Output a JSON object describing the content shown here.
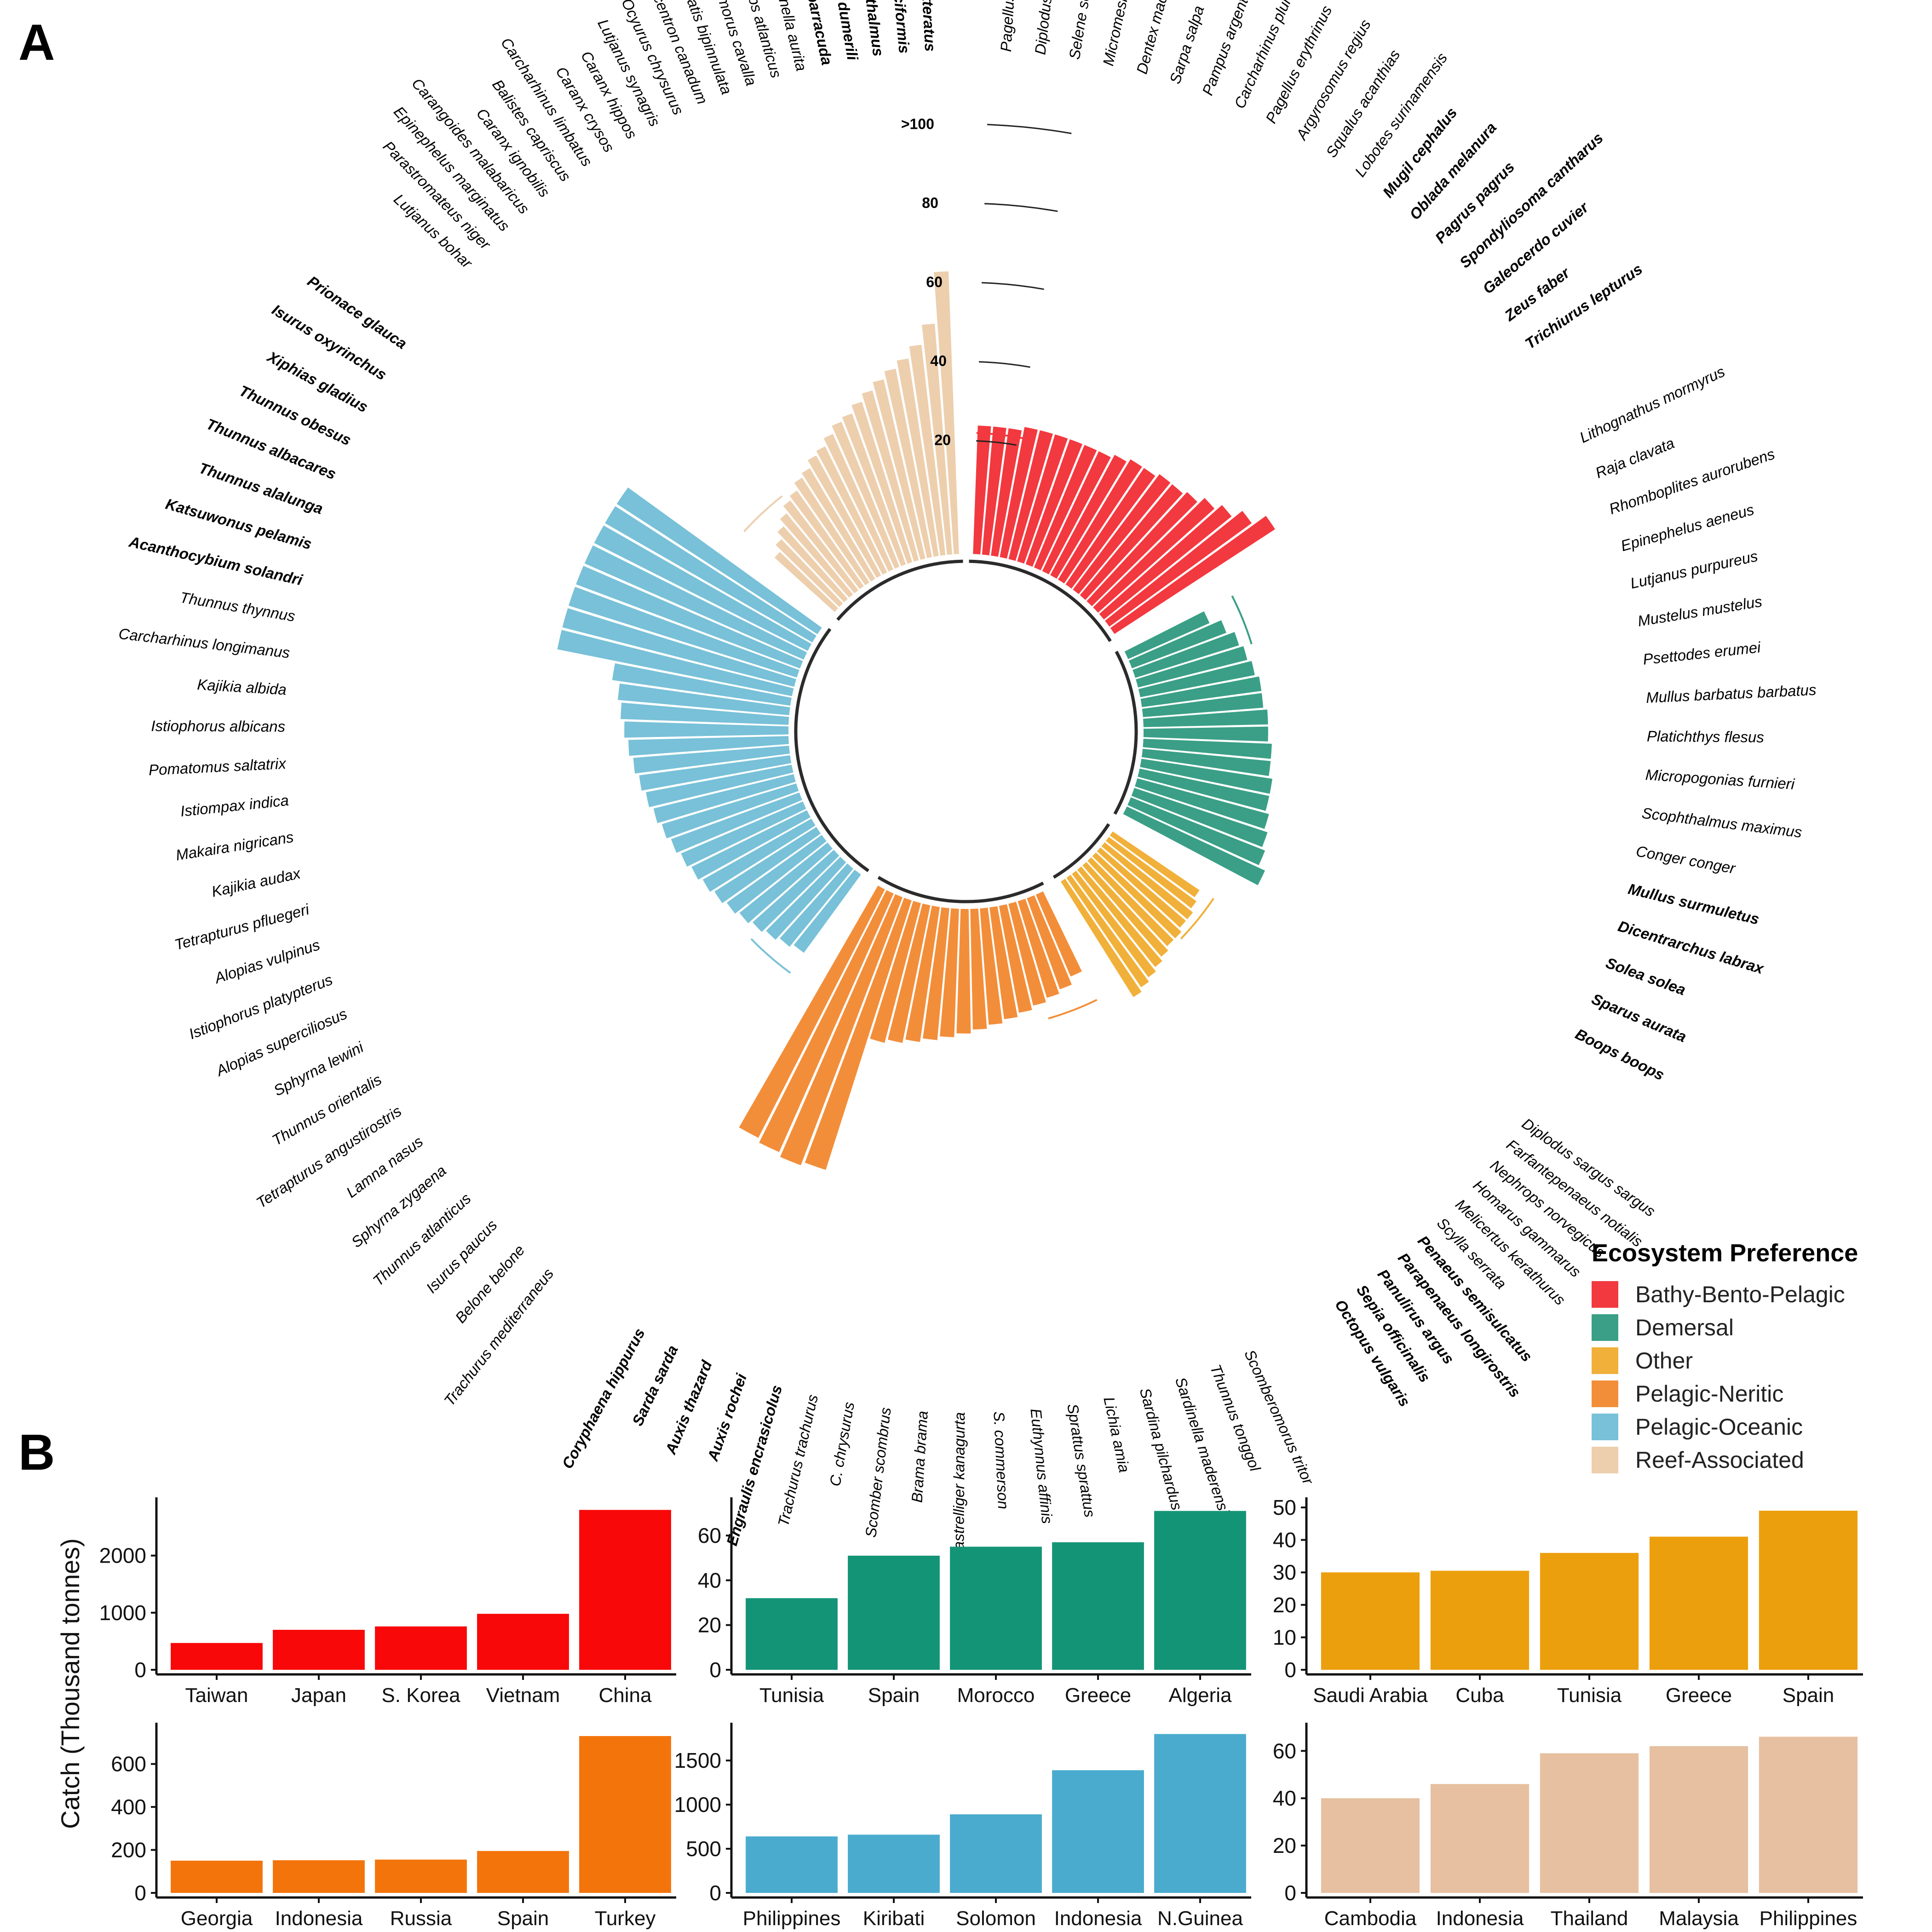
{
  "panels": {
    "a": "A",
    "b": "B"
  },
  "ecosystems": [
    {
      "name": "Bathy-Bento-Pelagic",
      "color": "#f2393f"
    },
    {
      "name": "Demersal",
      "color": "#3a9f86"
    },
    {
      "name": "Other",
      "color": "#f0b03a"
    },
    {
      "name": "Pelagic-Neritic",
      "color": "#f28e3a"
    },
    {
      "name": "Pelagic-Oceanic",
      "color": "#78c1d8"
    },
    {
      "name": "Reef-Associated",
      "color": "#edcfae"
    }
  ],
  "legend": {
    "title": "Ecosystem Preference"
  },
  "chart_data": [
    {
      "type": "bar",
      "coord": "polar",
      "scale_labels": [
        "20",
        "40",
        "60",
        "80",
        ">100"
      ],
      "groups": [
        {
          "ecosystem": "Bathy-Bento-Pelagic",
          "species": [
            {
              "name": "Pagellus acarne",
              "value": 24,
              "bold": false
            },
            {
              "name": "Diplodus annularis",
              "value": 24,
              "bold": false
            },
            {
              "name": "Selene setapinnis",
              "value": 24,
              "bold": false
            },
            {
              "name": "Micromesistius poutassou",
              "value": 25,
              "bold": false
            },
            {
              "name": "Dentex macrophthalmus",
              "value": 25,
              "bold": false
            },
            {
              "name": "Sarpa salpa",
              "value": 25,
              "bold": false
            },
            {
              "name": "Pampus argenteus",
              "value": 25,
              "bold": false
            },
            {
              "name": "Carcharhinus plumbeus",
              "value": 25,
              "bold": false
            },
            {
              "name": "Pagellus erythrinus",
              "value": 25,
              "bold": false
            },
            {
              "name": "Argyrosomus regius",
              "value": 26,
              "bold": false
            },
            {
              "name": "Squalus acanthias",
              "value": 27,
              "bold": false
            },
            {
              "name": "Lobotes surinamensis",
              "value": 27,
              "bold": false
            },
            {
              "name": "Mugil cephalus",
              "value": 28,
              "bold": true
            },
            {
              "name": "Oblada melanura",
              "value": 28,
              "bold": true
            },
            {
              "name": "Pagrus pagrus",
              "value": 29,
              "bold": true
            },
            {
              "name": "Spondyliosoma cantharus",
              "value": 31,
              "bold": true
            },
            {
              "name": "Galeocerdo cuvier",
              "value": 33,
              "bold": true
            },
            {
              "name": "Zeus faber",
              "value": 36,
              "bold": true
            },
            {
              "name": "Trichiurus lepturus",
              "value": 40,
              "bold": true
            }
          ]
        },
        {
          "ecosystem": "Demersal",
          "species": [
            {
              "name": "Lithognathus mormyrus",
              "value": 14,
              "bold": false
            },
            {
              "name": "Raja clavata",
              "value": 17,
              "bold": false
            },
            {
              "name": "Rhomboplites aurorubens",
              "value": 19,
              "bold": false
            },
            {
              "name": "Epinephelus aeneus",
              "value": 20,
              "bold": false
            },
            {
              "name": "Lutjanus purpureus",
              "value": 21,
              "bold": false
            },
            {
              "name": "Mustelus mustelus",
              "value": 22,
              "bold": false
            },
            {
              "name": "Psettodes erumei",
              "value": 22,
              "bold": false
            },
            {
              "name": "Mullus barbatus barbatus",
              "value": 23,
              "bold": false
            },
            {
              "name": "Platichthys flesus",
              "value": 23,
              "bold": false
            },
            {
              "name": "Micropogonias furnieri",
              "value": 24,
              "bold": false
            },
            {
              "name": "Scophthalmus maximus",
              "value": 24,
              "bold": false
            },
            {
              "name": "Conger conger",
              "value": 25,
              "bold": false
            },
            {
              "name": "Mullus surmuletus",
              "value": 25,
              "bold": true
            },
            {
              "name": "Dicentrarchus labrax",
              "value": 26,
              "bold": true
            },
            {
              "name": "Solea solea",
              "value": 27,
              "bold": true
            },
            {
              "name": "Sparus aurata",
              "value": 28,
              "bold": true
            },
            {
              "name": "Boops boops",
              "value": 30,
              "bold": true
            }
          ]
        },
        {
          "ecosystem": "Other",
          "species": [
            {
              "name": "Diplodus sargus sargus",
              "value": 18,
              "bold": false
            },
            {
              "name": "Farfantepenaeus notialis",
              "value": 19,
              "bold": false
            },
            {
              "name": "Nephrops norvegicus",
              "value": 20,
              "bold": false
            },
            {
              "name": "Homarus gammarus",
              "value": 20,
              "bold": false
            },
            {
              "name": "Melicertus kerathurus",
              "value": 21,
              "bold": false
            },
            {
              "name": "Scylla serrata",
              "value": 21,
              "bold": false
            },
            {
              "name": "Penaeus semisulcatus",
              "value": 22,
              "bold": true
            },
            {
              "name": "Parapenaeus longirostris",
              "value": 23,
              "bold": true
            },
            {
              "name": "Panulirus argus",
              "value": 24,
              "bold": true
            },
            {
              "name": "Sepia officinalis",
              "value": 25,
              "bold": true
            },
            {
              "name": "Octopus vulgaris",
              "value": 26,
              "bold": true
            }
          ]
        },
        {
          "ecosystem": "Pelagic-Neritic",
          "species": [
            {
              "name": "Scomberomorus tritor",
              "value": 14,
              "bold": false
            },
            {
              "name": "Thunnus tonggol",
              "value": 16,
              "bold": false
            },
            {
              "name": "Sardinella maderensis",
              "value": 17,
              "bold": false
            },
            {
              "name": "Sardina pilchardus",
              "value": 18,
              "bold": false
            },
            {
              "name": "Lichia amia",
              "value": 19,
              "bold": false
            },
            {
              "name": "Sprattus sprattus",
              "value": 20,
              "bold": false
            },
            {
              "name": "Euthynnus affinis",
              "value": 21,
              "bold": false
            },
            {
              "name": "S. commerson",
              "value": 22,
              "bold": false
            },
            {
              "name": "Rastrelliger kanagurta",
              "value": 23,
              "bold": false
            },
            {
              "name": "Brama brama",
              "value": 24,
              "bold": false
            },
            {
              "name": "Scomber scombrus",
              "value": 25,
              "bold": false
            },
            {
              "name": "C. chrysurus",
              "value": 26,
              "bold": false
            },
            {
              "name": "Trachurus trachurus",
              "value": 27,
              "bold": false
            },
            {
              "name": "Engraulis encrasicolus",
              "value": 28,
              "bold": true
            },
            {
              "name": "Auxis rochei",
              "value": 63,
              "bold": true
            },
            {
              "name": "Auxis thazard",
              "value": 64,
              "bold": true
            },
            {
              "name": "Sarda sarda",
              "value": 63,
              "bold": true
            },
            {
              "name": "Coryphaena hippurus",
              "value": 62,
              "bold": true
            }
          ]
        },
        {
          "ecosystem": "Pelagic-Oceanic",
          "species": [
            {
              "name": "Trachurus mediterraneus",
              "value": 16,
              "bold": false
            },
            {
              "name": "Belone belone",
              "value": 17,
              "bold": false
            },
            {
              "name": "Isurus paucus",
              "value": 18,
              "bold": false
            },
            {
              "name": "Thunnus atlanticus",
              "value": 19,
              "bold": false
            },
            {
              "name": "Sphyrna zygaena",
              "value": 20,
              "bold": false
            },
            {
              "name": "Lamna nasus",
              "value": 21,
              "bold": false
            },
            {
              "name": "Tetrapturus angustirostris",
              "value": 22,
              "bold": false
            },
            {
              "name": "Thunnus orientalis",
              "value": 23,
              "bold": false
            },
            {
              "name": "Sphyrna lewini",
              "value": 24,
              "bold": false
            },
            {
              "name": "Alopias superciliosus",
              "value": 25,
              "bold": false
            },
            {
              "name": "Istiophorus platypterus",
              "value": 26,
              "bold": false
            },
            {
              "name": "Alopias vulpinus",
              "value": 27,
              "bold": false
            },
            {
              "name": "Tetrapturus pfluegeri",
              "value": 28,
              "bold": false
            },
            {
              "name": "Kajikia audax",
              "value": 29,
              "bold": false
            },
            {
              "name": "Makaira nigricans",
              "value": 30,
              "bold": false
            },
            {
              "name": "Istiompax indica",
              "value": 31,
              "bold": false
            },
            {
              "name": "Pomatomus saltatrix",
              "value": 32,
              "bold": false
            },
            {
              "name": "Istiophorus albicans",
              "value": 33,
              "bold": false
            },
            {
              "name": "Kajikia albida",
              "value": 34,
              "bold": false
            },
            {
              "name": "Carcharhinus longimanus",
              "value": 35,
              "bold": false
            },
            {
              "name": "Thunnus thynnus",
              "value": 37,
              "bold": false
            },
            {
              "name": "Acanthocybium solandri",
              "value": 52,
              "bold": true
            },
            {
              "name": "Katsuwonus pelamis",
              "value": 52,
              "bold": true
            },
            {
              "name": "Thunnus alalunga",
              "value": 52,
              "bold": true
            },
            {
              "name": "Thunnus albacares",
              "value": 52,
              "bold": true
            },
            {
              "name": "Thunnus obesus",
              "value": 52,
              "bold": true
            },
            {
              "name": "Xiphias gladius",
              "value": 52,
              "bold": true
            },
            {
              "name": "Isurus oxyrinchus",
              "value": 52,
              "bold": true
            },
            {
              "name": "Prionace glauca",
              "value": 52,
              "bold": true
            }
          ]
        },
        {
          "ecosystem": "Reef-Associated",
          "species": [
            {
              "name": "Lutjanus bohar",
              "value": 12,
              "bold": false
            },
            {
              "name": "Parastromateus niger",
              "value": 14,
              "bold": false
            },
            {
              "name": "Epinephelus marginatus",
              "value": 16,
              "bold": false
            },
            {
              "name": "Carangoides malabaricus",
              "value": 18,
              "bold": false
            },
            {
              "name": "Caranx ignobilis",
              "value": 20,
              "bold": false
            },
            {
              "name": "Balistes capriscus",
              "value": 21,
              "bold": false
            },
            {
              "name": "Carcharhinus limbatus",
              "value": 23,
              "bold": false
            },
            {
              "name": "Caranx crysos",
              "value": 24,
              "bold": false
            },
            {
              "name": "Caranx hippos",
              "value": 26,
              "bold": false
            },
            {
              "name": "Lutjanus synagris",
              "value": 27,
              "bold": false
            },
            {
              "name": "Ocyurus chrysurus",
              "value": 29,
              "bold": false
            },
            {
              "name": "Rachycentron canadum",
              "value": 31,
              "bold": false
            },
            {
              "name": "Elagatis bipinnulata",
              "value": 32,
              "bold": false
            },
            {
              "name": "Scomberomorus cavalla",
              "value": 34,
              "bold": false
            },
            {
              "name": "Megalops atlanticus",
              "value": 36,
              "bold": false
            },
            {
              "name": "Sardinella aurita",
              "value": 38,
              "bold": false
            },
            {
              "name": "Sphyraena barracuda",
              "value": 40,
              "bold": true
            },
            {
              "name": "Seriola dumerili",
              "value": 42,
              "bold": true
            },
            {
              "name": "Selar crumenophthalmus",
              "value": 45,
              "bold": true
            },
            {
              "name": "Carcharhinus falciformis",
              "value": 50,
              "bold": true
            },
            {
              "name": "Euthynnus alletteratus",
              "value": 63,
              "bold": true
            }
          ]
        }
      ]
    },
    {
      "type": "bar",
      "panel": "B",
      "ecosystem": "Bathy-Bento-Pelagic",
      "categories": [
        "Taiwan",
        "Japan",
        "S. Korea",
        "Vietnam",
        "China"
      ],
      "values": [
        470,
        700,
        760,
        980,
        2800
      ],
      "ylim": [
        0,
        2900
      ],
      "yticks": [
        "0",
        "1000",
        "2000"
      ]
    },
    {
      "type": "bar",
      "panel": "B",
      "ecosystem": "Demersal",
      "categories": [
        "Tunisia",
        "Spain",
        "Morocco",
        "Greece",
        "Algeria"
      ],
      "values": [
        32,
        51,
        55,
        57,
        71
      ],
      "ylim": [
        0,
        74
      ],
      "yticks": [
        "0",
        "20",
        "40",
        "60"
      ]
    },
    {
      "type": "bar",
      "panel": "B",
      "ecosystem": "Other",
      "categories": [
        "Saudi Arabia",
        "Cuba",
        "Tunisia",
        "Greece",
        "Spain"
      ],
      "values": [
        30,
        30.5,
        36,
        41,
        49
      ],
      "ylim": [
        0,
        51
      ],
      "yticks": [
        "0",
        "10",
        "20",
        "30",
        "40",
        "50"
      ]
    },
    {
      "type": "bar",
      "panel": "B",
      "ecosystem": "Pelagic-Neritic",
      "categories": [
        "Georgia",
        "Indonesia",
        "Russia",
        "Spain",
        "Turkey"
      ],
      "values": [
        150,
        152,
        155,
        195,
        730
      ],
      "ylim": [
        0,
        760
      ],
      "yticks": [
        "0",
        "200",
        "400",
        "600"
      ]
    },
    {
      "type": "bar",
      "panel": "B",
      "ecosystem": "Pelagic-Oceanic",
      "categories": [
        "Philippines",
        "Kiribati",
        "Solomon",
        "Indonesia",
        "N.Guinea"
      ],
      "values": [
        640,
        660,
        890,
        1390,
        1800
      ],
      "ylim": [
        0,
        1850
      ],
      "yticks": [
        "0",
        "500",
        "1000",
        "1500"
      ]
    },
    {
      "type": "bar",
      "panel": "B",
      "ecosystem": "Reef-Associated",
      "categories": [
        "Cambodia",
        "Indonesia",
        "Thailand",
        "Malaysia",
        "Philippines"
      ],
      "values": [
        40,
        46,
        59,
        62,
        66
      ],
      "ylim": [
        0,
        69
      ],
      "yticks": [
        "0",
        "20",
        "40",
        "60"
      ]
    }
  ],
  "ylabel": "Catch (Thousand tonnes)"
}
